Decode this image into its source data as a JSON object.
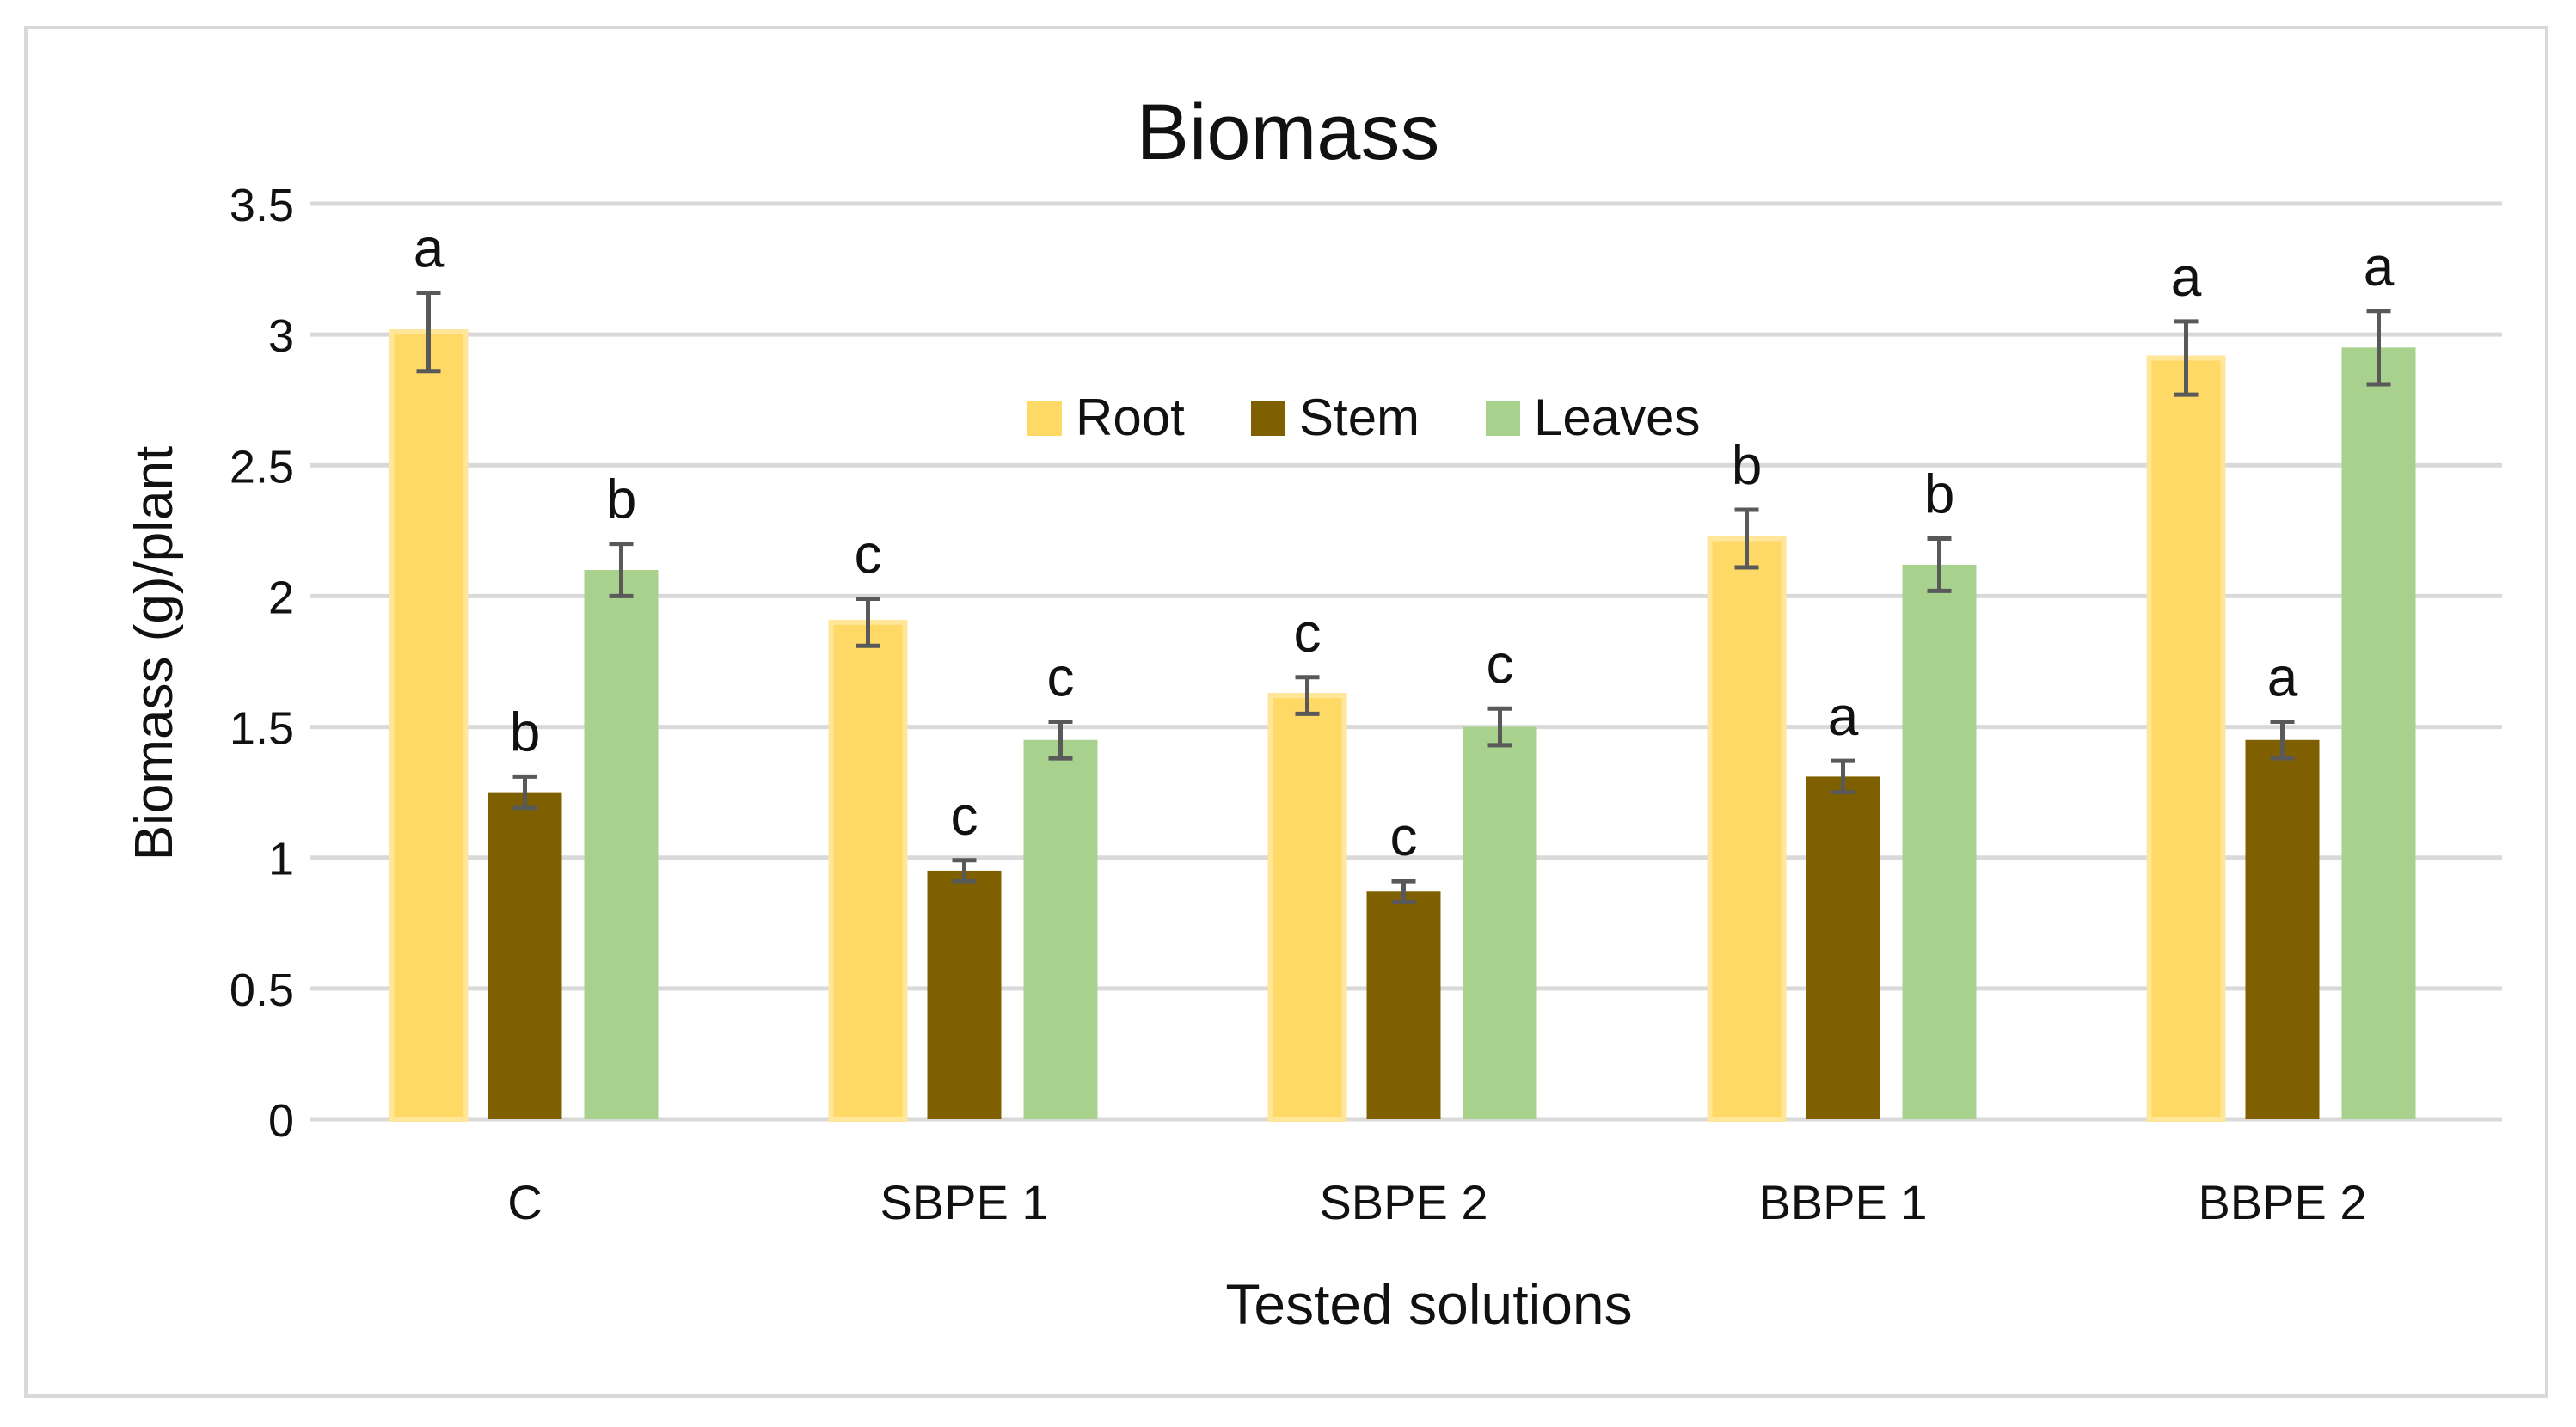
{
  "chart_data": {
    "type": "bar",
    "title": "Biomass",
    "xlabel": "Tested solutions",
    "ylabel": "Biomass (g)/plant",
    "ylim": [
      0,
      3.5
    ],
    "yticks": [
      0,
      0.5,
      1,
      1.5,
      2,
      2.5,
      3,
      3.5
    ],
    "ytick_labels": [
      "0",
      "0.5",
      "1",
      "1.5",
      "2",
      "2.5",
      "3",
      "3.5"
    ],
    "grid": true,
    "legend_position": "top-center",
    "categories": [
      "C",
      "SBPE 1",
      "SBPE 2",
      "BBPE 1",
      "BBPE 2"
    ],
    "series": [
      {
        "name": "Root",
        "color": "#ffd966",
        "values": [
          3.01,
          1.9,
          1.62,
          2.22,
          2.91
        ],
        "errors": [
          0.15,
          0.09,
          0.07,
          0.11,
          0.14
        ],
        "letters": [
          "a",
          "c",
          "c",
          "b",
          "a"
        ]
      },
      {
        "name": "Stem",
        "color": "#7f6000",
        "values": [
          1.25,
          0.95,
          0.87,
          1.31,
          1.45
        ],
        "errors": [
          0.06,
          0.04,
          0.04,
          0.06,
          0.07
        ],
        "letters": [
          "b",
          "c",
          "c",
          "a",
          "a"
        ]
      },
      {
        "name": "Leaves",
        "color": "#a9d18e",
        "values": [
          2.1,
          1.45,
          1.5,
          2.12,
          2.95
        ],
        "errors": [
          0.1,
          0.07,
          0.07,
          0.1,
          0.14
        ],
        "letters": [
          "b",
          "c",
          "c",
          "b",
          "a"
        ]
      }
    ]
  }
}
